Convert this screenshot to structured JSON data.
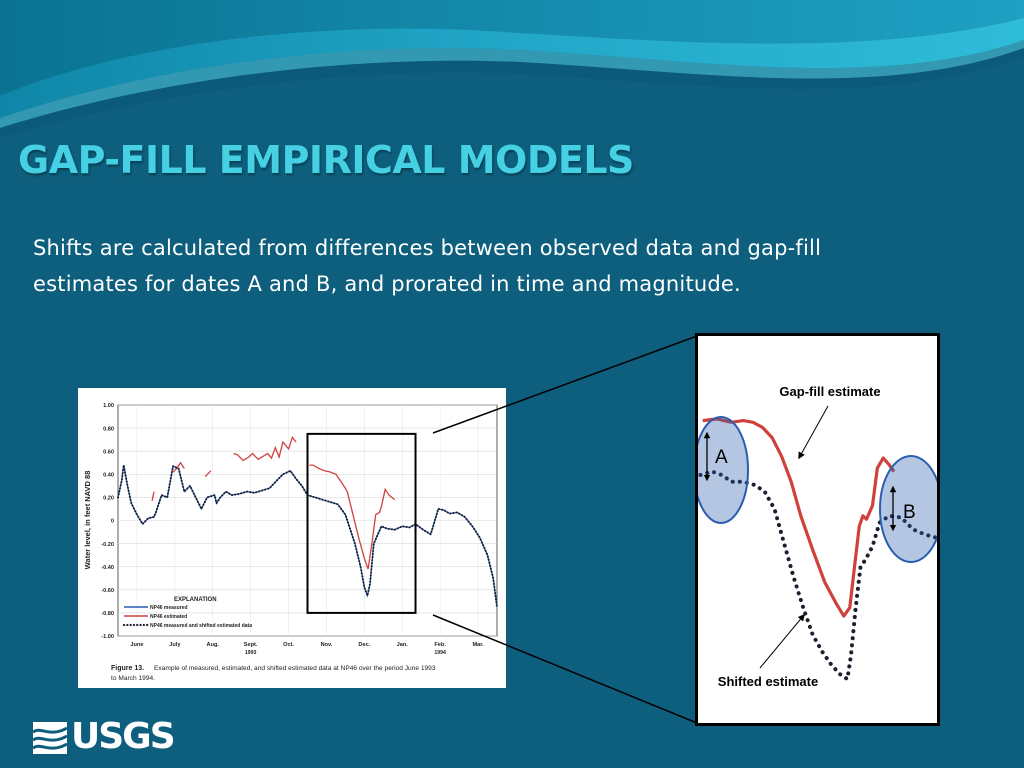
{
  "slide": {
    "title": "GAP-FILL EMPIRICAL MODELS",
    "subtitle": "Shifts are calculated from differences between observed data and gap-fill estimates for dates A and B, and  prorated in time and magnitude.",
    "logo": "USGS",
    "colors": {
      "background": "#0d5f7d",
      "title": "#45d0e4",
      "measured": "#2a5db0",
      "estimated": "#d0403c",
      "shifted": "#1a2030",
      "zoom_markers": "#2a5db0"
    }
  },
  "chart_data": [
    {
      "type": "line",
      "title": "",
      "ylabel": "Water level, in feet NAVD 88",
      "xlabel": "",
      "ylim": [
        -1.0,
        1.0
      ],
      "yticks": [
        "1.00",
        "0.80",
        "0.60",
        "0.40",
        "0.20",
        "0",
        "-0.20",
        "-0.40",
        "-0.60",
        "-0.80",
        "-1.00"
      ],
      "ytick_values": [
        1.0,
        0.8,
        0.6,
        0.4,
        0.2,
        0,
        -0.2,
        -0.4,
        -0.6,
        -0.8,
        -1.0
      ],
      "xlim": [
        0,
        10
      ],
      "xticks": [
        {
          "x": 0.5,
          "label": "June",
          "sub": ""
        },
        {
          "x": 1.5,
          "label": "July",
          "sub": ""
        },
        {
          "x": 2.5,
          "label": "Aug.",
          "sub": ""
        },
        {
          "x": 3.5,
          "label": "Sept.",
          "sub": "1993"
        },
        {
          "x": 4.5,
          "label": "Oct.",
          "sub": ""
        },
        {
          "x": 5.5,
          "label": "Nov.",
          "sub": ""
        },
        {
          "x": 6.5,
          "label": "Dec.",
          "sub": ""
        },
        {
          "x": 7.5,
          "label": "Jan.",
          "sub": ""
        },
        {
          "x": 8.5,
          "label": "Feb.",
          "sub": "1994"
        },
        {
          "x": 9.5,
          "label": "Mar.",
          "sub": ""
        }
      ],
      "legend": {
        "title": "EXPLANATION",
        "position": "bottom-left",
        "entries": [
          "NP46 measured",
          "NP46 estimated",
          "NP46 measured and shifted estimated data"
        ]
      },
      "series": [
        {
          "name": "NP46 measured",
          "style": "solid",
          "color": "#2a5db0",
          "points": [
            [
              0,
              0.2
            ],
            [
              0.1,
              0.35
            ],
            [
              0.15,
              0.48
            ],
            [
              0.25,
              0.3
            ],
            [
              0.35,
              0.15
            ],
            [
              0.5,
              0.05
            ],
            [
              0.65,
              -0.03
            ],
            [
              0.8,
              0.02
            ],
            [
              0.95,
              0.03
            ],
            [
              1.0,
              0.07
            ],
            [
              1.15,
              0.22
            ],
            [
              1.3,
              0.2
            ],
            [
              1.45,
              0.47
            ],
            [
              1.6,
              0.45
            ],
            [
              1.75,
              0.25
            ],
            [
              1.9,
              0.3
            ],
            [
              2.05,
              0.2
            ],
            [
              2.2,
              0.1
            ],
            [
              2.35,
              0.2
            ],
            [
              2.55,
              0.22
            ],
            [
              2.6,
              0.15
            ],
            [
              2.7,
              0.2
            ],
            [
              2.85,
              0.25
            ],
            [
              3.0,
              0.22
            ],
            [
              3.2,
              0.23
            ],
            [
              3.4,
              0.25
            ],
            [
              3.6,
              0.24
            ],
            [
              3.8,
              0.26
            ],
            [
              4.0,
              0.28
            ],
            [
              4.2,
              0.35
            ],
            [
              4.35,
              0.4
            ],
            [
              4.55,
              0.43
            ],
            [
              4.7,
              0.36
            ],
            [
              4.85,
              0.3
            ],
            [
              5.0,
              0.22
            ],
            [
              5.2,
              0.2
            ],
            [
              5.5,
              0.17
            ],
            [
              5.8,
              0.14
            ],
            [
              6.0,
              0.05
            ],
            [
              6.1,
              -0.05
            ],
            [
              6.25,
              -0.2
            ],
            [
              6.4,
              -0.4
            ],
            [
              6.5,
              -0.58
            ],
            [
              6.58,
              -0.65
            ],
            [
              6.65,
              -0.55
            ],
            [
              6.75,
              -0.2
            ],
            [
              6.95,
              -0.05
            ],
            [
              7.1,
              -0.07
            ],
            [
              7.3,
              -0.08
            ],
            [
              7.5,
              -0.05
            ],
            [
              7.7,
              -0.06
            ],
            [
              7.85,
              -0.03
            ],
            [
              8.05,
              -0.08
            ],
            [
              8.25,
              -0.12
            ],
            [
              8.45,
              0.1
            ],
            [
              8.6,
              0.09
            ],
            [
              8.75,
              0.06
            ],
            [
              8.95,
              0.07
            ],
            [
              9.15,
              0.03
            ],
            [
              9.35,
              -0.05
            ],
            [
              9.55,
              -0.15
            ],
            [
              9.75,
              -0.3
            ],
            [
              9.9,
              -0.5
            ],
            [
              10.0,
              -0.75
            ]
          ]
        },
        {
          "name": "NP46 estimated",
          "style": "solid",
          "color": "#d0403c",
          "segments": [
            [
              [
                0.9,
                0.17
              ],
              [
                0.95,
                0.25
              ]
            ],
            [
              [
                1.45,
                0.42
              ],
              [
                1.55,
                0.45
              ],
              [
                1.65,
                0.5
              ],
              [
                1.75,
                0.45
              ]
            ],
            [
              [
                2.3,
                0.38
              ],
              [
                2.45,
                0.43
              ]
            ],
            [
              [
                3.05,
                0.58
              ],
              [
                3.15,
                0.57
              ],
              [
                3.3,
                0.52
              ],
              [
                3.45,
                0.55
              ],
              [
                3.55,
                0.58
              ],
              [
                3.7,
                0.53
              ],
              [
                3.85,
                0.56
              ],
              [
                3.95,
                0.58
              ],
              [
                4.05,
                0.54
              ],
              [
                4.15,
                0.63
              ],
              [
                4.25,
                0.55
              ],
              [
                4.35,
                0.68
              ],
              [
                4.5,
                0.62
              ],
              [
                4.6,
                0.72
              ],
              [
                4.7,
                0.68
              ]
            ],
            [
              [
                5.05,
                0.48
              ],
              [
                5.15,
                0.48
              ],
              [
                5.3,
                0.45
              ],
              [
                5.45,
                0.43
              ],
              [
                5.6,
                0.42
              ],
              [
                5.75,
                0.4
              ],
              [
                5.9,
                0.33
              ],
              [
                6.05,
                0.25
              ],
              [
                6.2,
                0.05
              ],
              [
                6.35,
                -0.15
              ],
              [
                6.5,
                -0.33
              ],
              [
                6.6,
                -0.42
              ],
              [
                6.7,
                -0.2
              ],
              [
                6.8,
                0.05
              ],
              [
                6.9,
                0.07
              ],
              [
                6.95,
                0.12
              ],
              [
                7.05,
                0.27
              ],
              [
                7.15,
                0.22
              ],
              [
                7.3,
                0.18
              ]
            ]
          ]
        },
        {
          "name": "NP46 measured and shifted estimated data",
          "style": "dotted",
          "color": "#1a2030",
          "points": [
            [
              0,
              0.2
            ],
            [
              0.1,
              0.35
            ],
            [
              0.15,
              0.48
            ],
            [
              0.25,
              0.3
            ],
            [
              0.35,
              0.15
            ],
            [
              0.5,
              0.05
            ],
            [
              0.65,
              -0.03
            ],
            [
              0.8,
              0.02
            ],
            [
              0.95,
              0.03
            ],
            [
              1.0,
              0.07
            ],
            [
              1.15,
              0.22
            ],
            [
              1.3,
              0.2
            ],
            [
              1.45,
              0.47
            ],
            [
              1.6,
              0.45
            ],
            [
              1.75,
              0.25
            ],
            [
              1.9,
              0.3
            ],
            [
              2.05,
              0.2
            ],
            [
              2.2,
              0.1
            ],
            [
              2.35,
              0.2
            ],
            [
              2.55,
              0.22
            ],
            [
              2.6,
              0.15
            ],
            [
              2.7,
              0.2
            ],
            [
              2.85,
              0.25
            ],
            [
              3.0,
              0.22
            ],
            [
              3.2,
              0.23
            ],
            [
              3.4,
              0.25
            ],
            [
              3.6,
              0.24
            ],
            [
              3.8,
              0.26
            ],
            [
              4.0,
              0.28
            ],
            [
              4.2,
              0.35
            ],
            [
              4.35,
              0.4
            ],
            [
              4.55,
              0.43
            ],
            [
              4.7,
              0.36
            ],
            [
              4.85,
              0.3
            ],
            [
              5.0,
              0.22
            ],
            [
              5.2,
              0.2
            ],
            [
              5.5,
              0.17
            ],
            [
              5.8,
              0.14
            ],
            [
              6.0,
              0.05
            ],
            [
              6.1,
              -0.05
            ],
            [
              6.25,
              -0.2
            ],
            [
              6.4,
              -0.4
            ],
            [
              6.5,
              -0.58
            ],
            [
              6.58,
              -0.65
            ],
            [
              6.65,
              -0.55
            ],
            [
              6.75,
              -0.2
            ],
            [
              6.95,
              -0.05
            ],
            [
              7.1,
              -0.07
            ],
            [
              7.3,
              -0.08
            ],
            [
              7.5,
              -0.05
            ],
            [
              7.7,
              -0.06
            ],
            [
              7.85,
              -0.03
            ],
            [
              8.05,
              -0.08
            ],
            [
              8.25,
              -0.12
            ],
            [
              8.45,
              0.1
            ],
            [
              8.6,
              0.09
            ],
            [
              8.75,
              0.06
            ],
            [
              8.95,
              0.07
            ],
            [
              9.15,
              0.03
            ],
            [
              9.35,
              -0.05
            ],
            [
              9.55,
              -0.15
            ],
            [
              9.75,
              -0.3
            ],
            [
              9.9,
              -0.5
            ],
            [
              10.0,
              -0.75
            ]
          ]
        }
      ],
      "caption": {
        "label": "Figure 13.",
        "text": "Example of measured, estimated, and shifted estimated data at NP46 over the period June 1993",
        "text2": "to March 1994."
      },
      "zoom_window": {
        "x": [
          5.0,
          7.85
        ],
        "y": [
          -0.8,
          0.75
        ]
      }
    },
    {
      "type": "line",
      "title": "",
      "xlim": [
        0,
        10
      ],
      "ylim": [
        0,
        10
      ],
      "annotations": [
        {
          "text": "Gap-fill estimate"
        },
        {
          "text": "Shifted estimate"
        },
        {
          "text": "A"
        },
        {
          "text": "B"
        }
      ],
      "series": [
        {
          "name": "",
          "style": "solid",
          "color": "#d0403c",
          "points": [
            [
              0.2,
              8.1
            ],
            [
              0.8,
              8.15
            ],
            [
              1.4,
              8.05
            ],
            [
              1.9,
              8.1
            ],
            [
              2.3,
              8.05
            ],
            [
              2.7,
              7.9
            ],
            [
              3.1,
              7.6
            ],
            [
              3.5,
              7.05
            ],
            [
              3.9,
              6.3
            ],
            [
              4.3,
              5.3
            ],
            [
              4.8,
              4.3
            ],
            [
              5.3,
              3.35
            ],
            [
              5.8,
              2.7
            ],
            [
              6.1,
              2.35
            ],
            [
              6.35,
              2.6
            ],
            [
              6.55,
              3.8
            ],
            [
              6.75,
              5.0
            ],
            [
              6.9,
              5.3
            ],
            [
              7.05,
              5.2
            ],
            [
              7.3,
              5.6
            ],
            [
              7.5,
              6.7
            ],
            [
              7.75,
              7.0
            ],
            [
              8.0,
              6.8
            ],
            [
              8.2,
              6.6
            ]
          ]
        },
        {
          "name": "",
          "style": "dotted",
          "color": "#1a2030",
          "points": [
            [
              0.1,
              6.5
            ],
            [
              0.6,
              6.6
            ],
            [
              1.0,
              6.5
            ],
            [
              1.4,
              6.3
            ],
            [
              1.9,
              6.3
            ],
            [
              2.4,
              6.2
            ],
            [
              2.8,
              6.0
            ],
            [
              3.2,
              5.5
            ],
            [
              3.6,
              4.5
            ],
            [
              4.0,
              3.5
            ],
            [
              4.4,
              2.6
            ],
            [
              4.8,
              1.8
            ],
            [
              5.2,
              1.3
            ],
            [
              5.6,
              0.9
            ],
            [
              6.0,
              0.6
            ],
            [
              6.25,
              0.5
            ],
            [
              6.4,
              1.2
            ],
            [
              6.6,
              2.6
            ],
            [
              6.8,
              3.8
            ],
            [
              7.0,
              4.0
            ],
            [
              7.3,
              4.4
            ],
            [
              7.6,
              5.1
            ],
            [
              8.0,
              5.3
            ],
            [
              8.5,
              5.25
            ],
            [
              9.0,
              4.9
            ],
            [
              9.5,
              4.75
            ],
            [
              10.0,
              4.65
            ]
          ]
        }
      ]
    }
  ]
}
